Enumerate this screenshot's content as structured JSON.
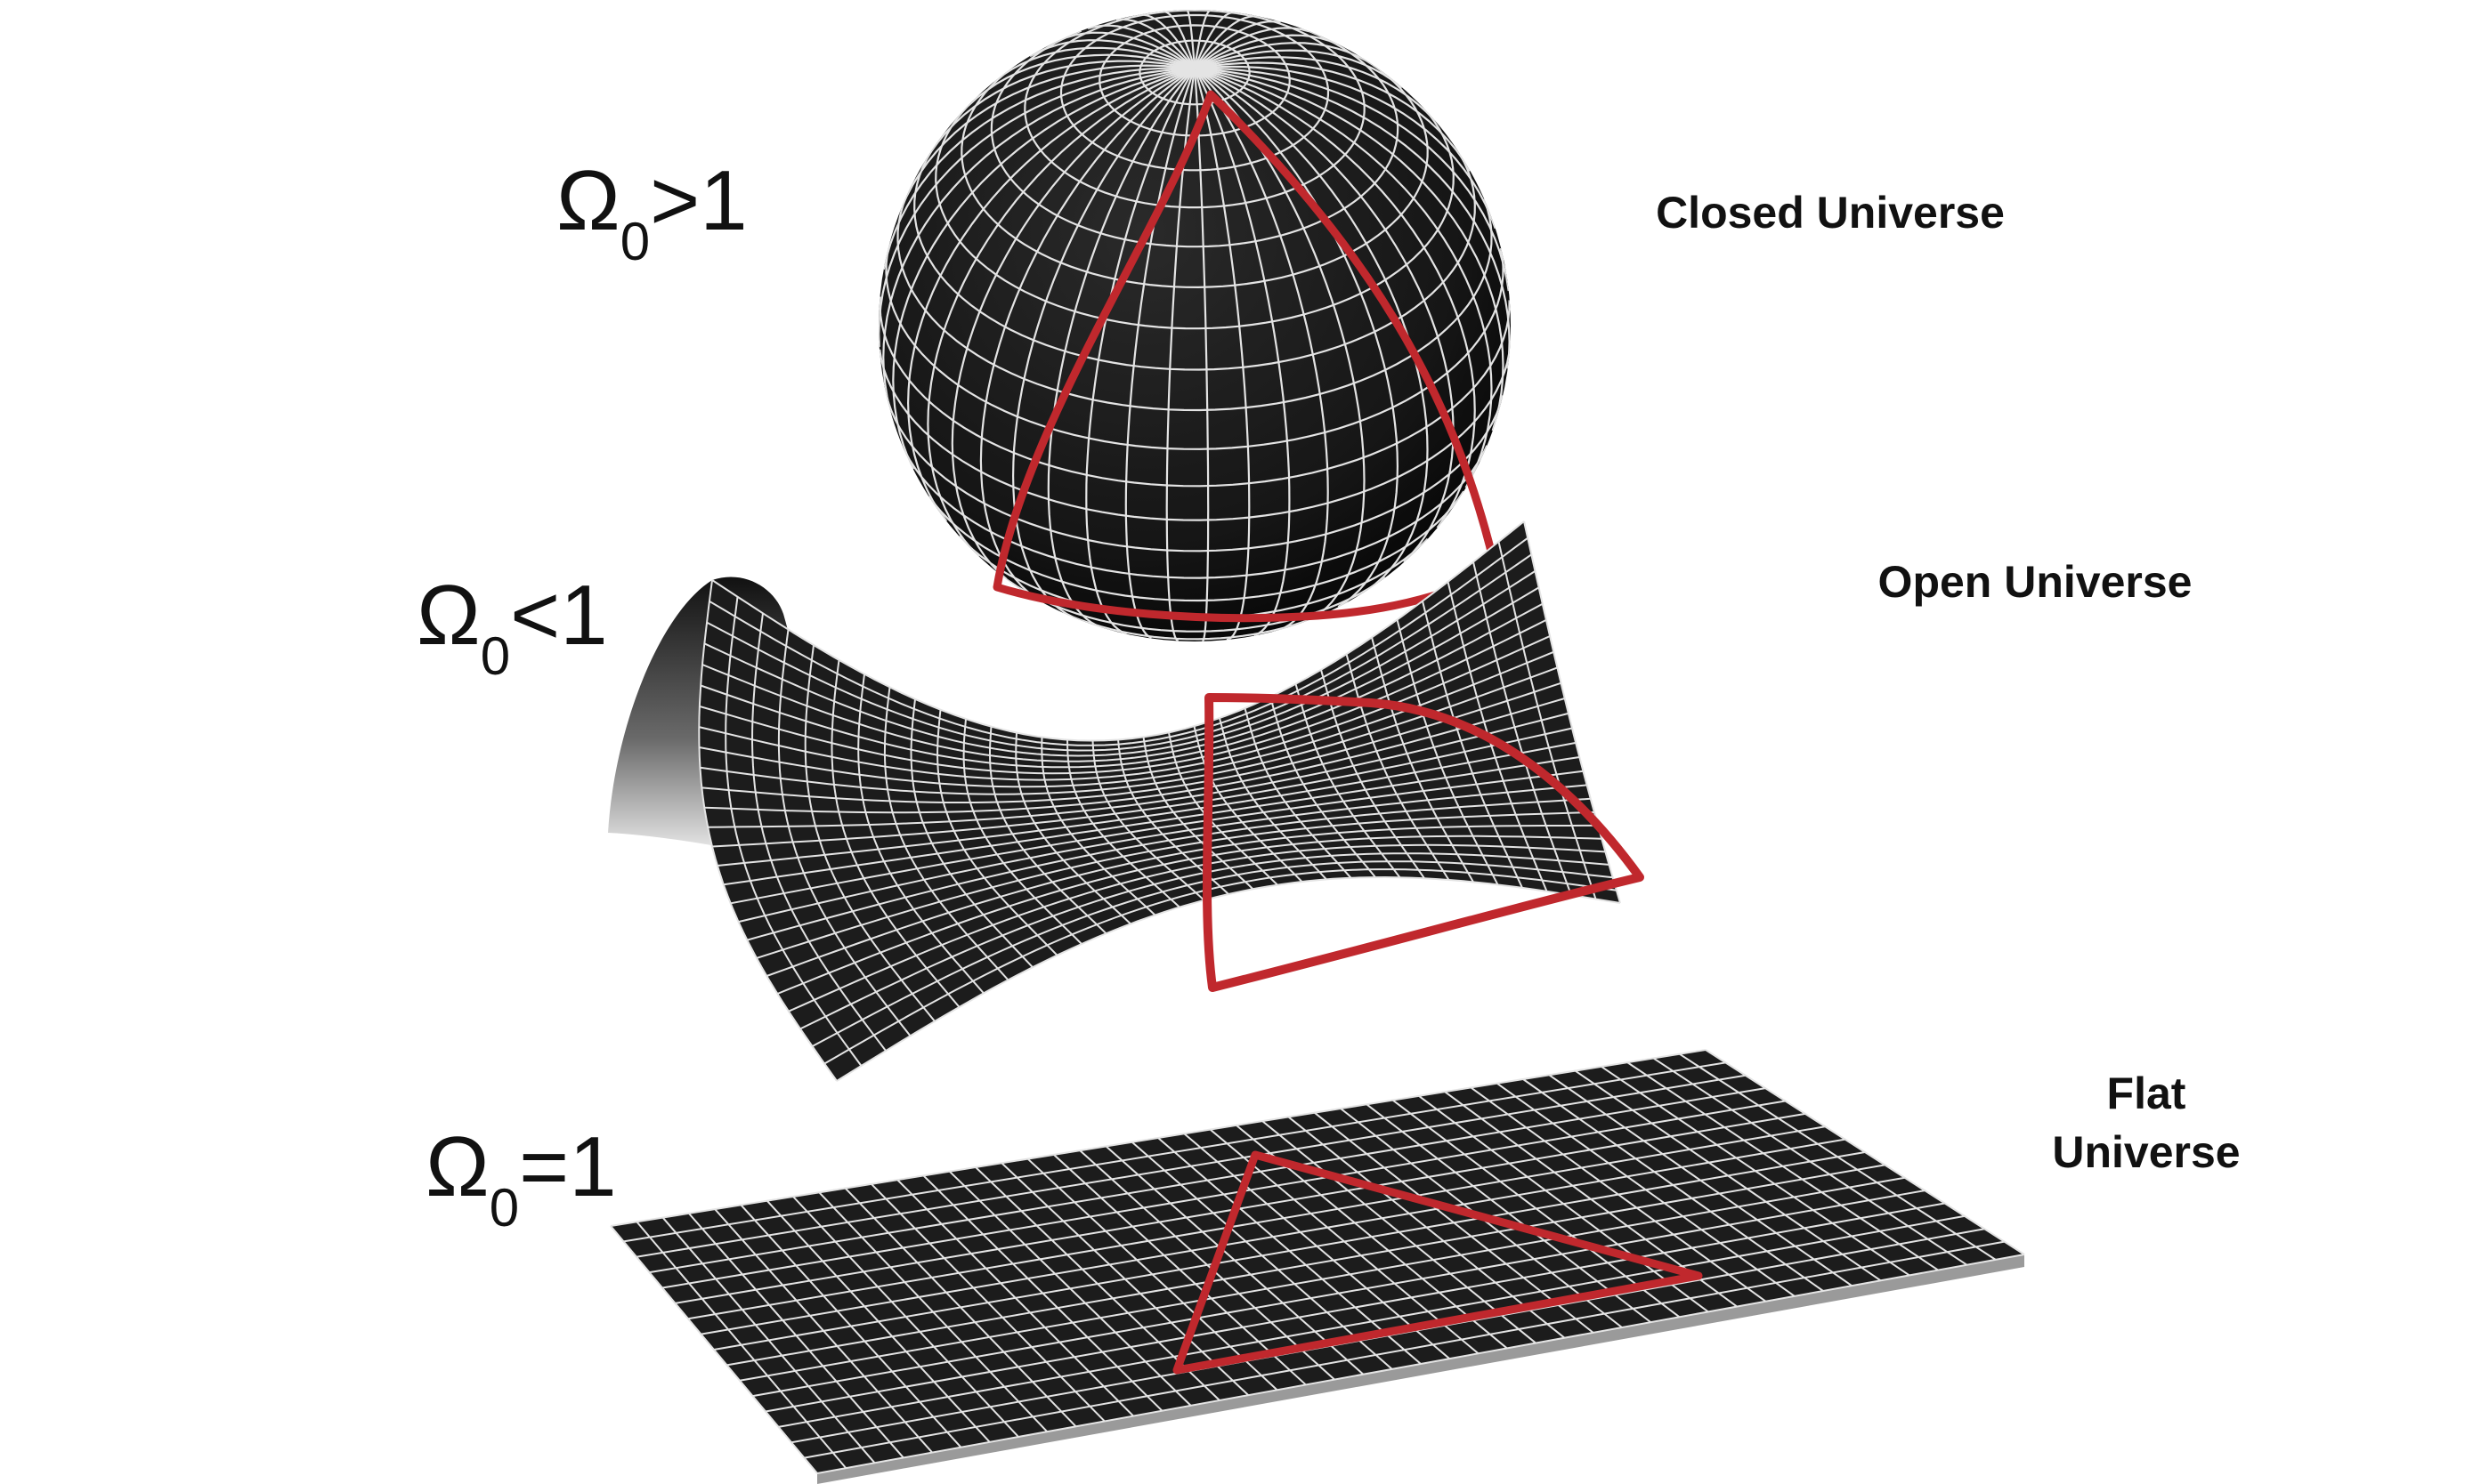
{
  "colors": {
    "background": "#ffffff",
    "surface": "#1c1c1c",
    "grid": "#e4e4e4",
    "triangle": "#c0282d",
    "text": "#111111"
  },
  "models": [
    {
      "id": "closed",
      "omega_symbol": "Ω",
      "omega_subscript": "0",
      "omega_condition": ">1",
      "label_lines": [
        "Closed Universe"
      ]
    },
    {
      "id": "open",
      "omega_symbol": "Ω",
      "omega_subscript": "0",
      "omega_condition": "<1",
      "label_lines": [
        "Open Universe"
      ]
    },
    {
      "id": "flat",
      "omega_symbol": "Ω",
      "omega_subscript": "0",
      "omega_condition": "=1",
      "label_lines": [
        "Flat",
        "Universe"
      ]
    }
  ]
}
